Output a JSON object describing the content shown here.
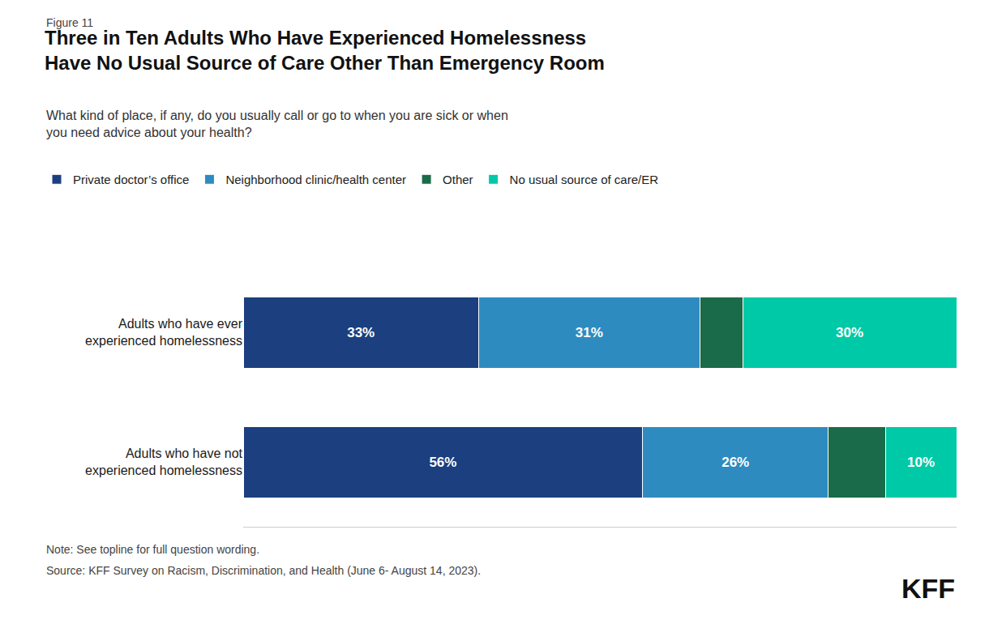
{
  "chart_data": {
    "type": "bar",
    "orientation": "horizontal",
    "stacked": true,
    "title": "Three in Ten Adults Who Have Experienced Homelessness\nHave No Usual Source of Care Other Than Emergency Room",
    "subtitle": "What kind of place, if any, do you usually call or go to when you are sick or when\nyou need advice about your health?",
    "annotations": [
      "Figure 11",
      "Note: See topline for full question wording.",
      "Source: KFF Survey on Racism, Discrimination, and Health (June 6- August 14, 2023).",
      "KFF"
    ],
    "categories": [
      "Adults who have ever\nexperienced homelessness",
      "Adults who have not\nexperienced homelessness"
    ],
    "series": [
      {
        "name": "Private doctor’s office",
        "color": "#1b3f7f",
        "values": [
          33,
          56
        ],
        "value_labels": [
          "33%",
          "56%"
        ]
      },
      {
        "name": "Neighborhood clinic/health center",
        "color": "#2e8bc0",
        "values": [
          31,
          26
        ],
        "value_labels": [
          "31%",
          "26%"
        ]
      },
      {
        "name": "Other",
        "color": "#1a6b4a",
        "values": [
          6,
          8
        ],
        "value_labels": [
          null,
          null
        ]
      },
      {
        "name": "No usual source of care/ER",
        "color": "#00c9a7",
        "values": [
          30,
          10
        ],
        "value_labels": [
          "30%",
          "10%"
        ]
      }
    ],
    "xlim": [
      0,
      100
    ],
    "data_labels": true,
    "tick_labels": "y",
    "grid": false
  }
}
